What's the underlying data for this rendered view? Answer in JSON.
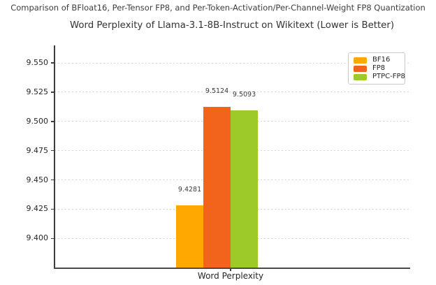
{
  "figure": {
    "suptitle": "Comparison of BFloat16, Per-Tensor FP8, and Per-Token-Activation/Per-Channel-Weight FP8 Quantization"
  },
  "chart_data": {
    "type": "bar",
    "title": "Word Perplexity of Llama-3.1-8B-Instruct on Wikitext (Lower is Better)",
    "categories": [
      "Word Perplexity"
    ],
    "xlabel": "Word Perplexity",
    "ylabel": "",
    "series": [
      {
        "name": "BF16",
        "color": "#FFA802",
        "values": [
          9.4281
        ],
        "value_labels": [
          "9.4281"
        ]
      },
      {
        "name": "FP8",
        "color": "#F2641C",
        "values": [
          9.5124
        ],
        "value_labels": [
          "9.5124"
        ]
      },
      {
        "name": "PTPC-FP8",
        "color": "#9DC929",
        "values": [
          9.5093
        ],
        "value_labels": [
          "9.5093"
        ]
      }
    ],
    "ylim": [
      9.3745,
      9.565
    ],
    "yticks": [
      9.4,
      9.425,
      9.45,
      9.475,
      9.5,
      9.525,
      9.55
    ],
    "ytick_labels": [
      "9.400",
      "9.425",
      "9.450",
      "9.475",
      "9.500",
      "9.525",
      "9.550"
    ],
    "grid": true,
    "grid_color": "#d6d6d6",
    "legend_position": "upper right"
  }
}
